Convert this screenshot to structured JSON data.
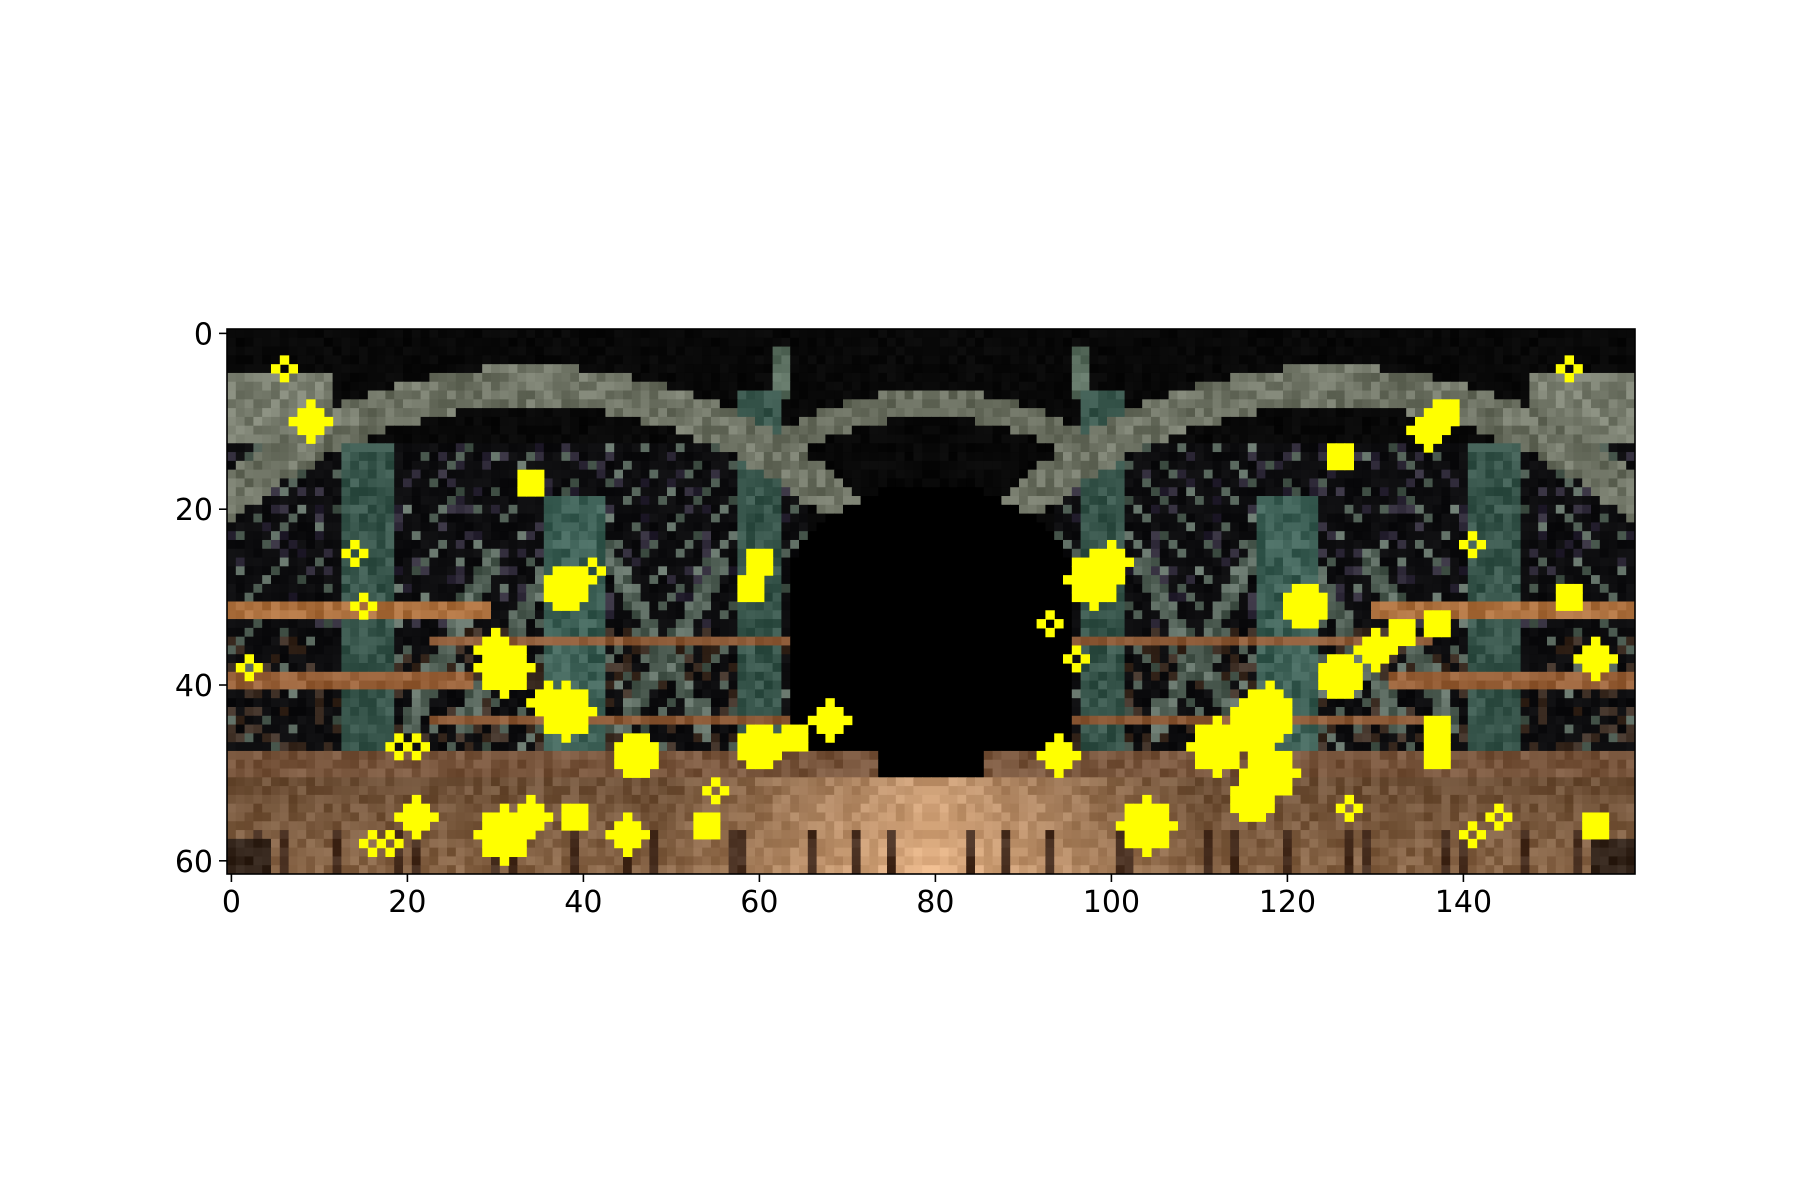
{
  "chart_data": {
    "type": "heatmap",
    "title": "",
    "xlabel": "",
    "ylabel": "",
    "image_size": {
      "columns": 160,
      "rows": 62
    },
    "xlim": [
      -0.5,
      159.5
    ],
    "ylim": [
      61.5,
      -0.5
    ],
    "y_axis_inverted": true,
    "x_ticks": [
      0,
      20,
      40,
      60,
      80,
      100,
      120,
      140
    ],
    "y_ticks": [
      0,
      20,
      40,
      60
    ],
    "grid": false,
    "legend": "none",
    "underlying_image": "pixelated night photograph of a steel truss bridge seen along its road deck, mirrored left-right about column 80",
    "overlay": {
      "color": "#ffff00",
      "description": "yellow highlighted pixel clusters (mask overlay)",
      "blobs": [
        {
          "x": 6,
          "y": 4,
          "r": 1
        },
        {
          "x": 9,
          "y": 10,
          "r": 2
        },
        {
          "x": 14,
          "y": 25,
          "r": 1
        },
        {
          "x": 15,
          "y": 31,
          "r": 1
        },
        {
          "x": 2,
          "y": 38,
          "r": 1
        },
        {
          "x": 19,
          "y": 47,
          "r": 1
        },
        {
          "x": 21,
          "y": 47,
          "r": 1
        },
        {
          "x": 21,
          "y": 55,
          "r": 2
        },
        {
          "x": 18,
          "y": 58,
          "r": 1
        },
        {
          "x": 16,
          "y": 58,
          "r": 1
        },
        {
          "x": 34,
          "y": 17,
          "r": 1.5
        },
        {
          "x": 38,
          "y": 29,
          "r": 2.5
        },
        {
          "x": 41,
          "y": 27,
          "r": 1
        },
        {
          "x": 31,
          "y": 38,
          "r": 3
        },
        {
          "x": 30,
          "y": 36,
          "r": 2
        },
        {
          "x": 38,
          "y": 43,
          "r": 3
        },
        {
          "x": 36,
          "y": 42,
          "r": 2
        },
        {
          "x": 46,
          "y": 48,
          "r": 2.5
        },
        {
          "x": 45,
          "y": 57,
          "r": 2
        },
        {
          "x": 31,
          "y": 57,
          "r": 3
        },
        {
          "x": 34,
          "y": 55,
          "r": 2
        },
        {
          "x": 39,
          "y": 55,
          "r": 1.5
        },
        {
          "x": 54,
          "y": 56,
          "r": 1.5
        },
        {
          "x": 55,
          "y": 52,
          "r": 1
        },
        {
          "x": 60,
          "y": 26,
          "r": 1.5
        },
        {
          "x": 59,
          "y": 29,
          "r": 1.5
        },
        {
          "x": 60,
          "y": 47,
          "r": 2.5
        },
        {
          "x": 64,
          "y": 46,
          "r": 1.5
        },
        {
          "x": 68,
          "y": 44,
          "r": 2
        },
        {
          "x": 98,
          "y": 28,
          "r": 3
        },
        {
          "x": 100,
          "y": 26,
          "r": 2
        },
        {
          "x": 93,
          "y": 33,
          "r": 1
        },
        {
          "x": 96,
          "y": 37,
          "r": 1
        },
        {
          "x": 94,
          "y": 48,
          "r": 2
        },
        {
          "x": 104,
          "y": 56,
          "r": 3
        },
        {
          "x": 112,
          "y": 47,
          "r": 3
        },
        {
          "x": 117,
          "y": 44,
          "r": 3.5
        },
        {
          "x": 118,
          "y": 50,
          "r": 3
        },
        {
          "x": 116,
          "y": 53,
          "r": 2.5
        },
        {
          "x": 118,
          "y": 42,
          "r": 2
        },
        {
          "x": 122,
          "y": 31,
          "r": 2.5
        },
        {
          "x": 126,
          "y": 39,
          "r": 2.5
        },
        {
          "x": 130,
          "y": 36,
          "r": 2
        },
        {
          "x": 133,
          "y": 34,
          "r": 1.5
        },
        {
          "x": 126,
          "y": 14,
          "r": 1.5
        },
        {
          "x": 136,
          "y": 11,
          "r": 2
        },
        {
          "x": 138,
          "y": 9,
          "r": 1.5
        },
        {
          "x": 141,
          "y": 24,
          "r": 1
        },
        {
          "x": 137,
          "y": 33,
          "r": 1.5
        },
        {
          "x": 137,
          "y": 45,
          "r": 1.5
        },
        {
          "x": 137,
          "y": 48,
          "r": 1.5
        },
        {
          "x": 152,
          "y": 4,
          "r": 1
        },
        {
          "x": 152,
          "y": 30,
          "r": 1.5
        },
        {
          "x": 155,
          "y": 37,
          "r": 2
        },
        {
          "x": 155,
          "y": 56,
          "r": 1.5
        },
        {
          "x": 144,
          "y": 55,
          "r": 1
        },
        {
          "x": 141,
          "y": 57,
          "r": 1
        },
        {
          "x": 127,
          "y": 54,
          "r": 1
        }
      ]
    }
  }
}
